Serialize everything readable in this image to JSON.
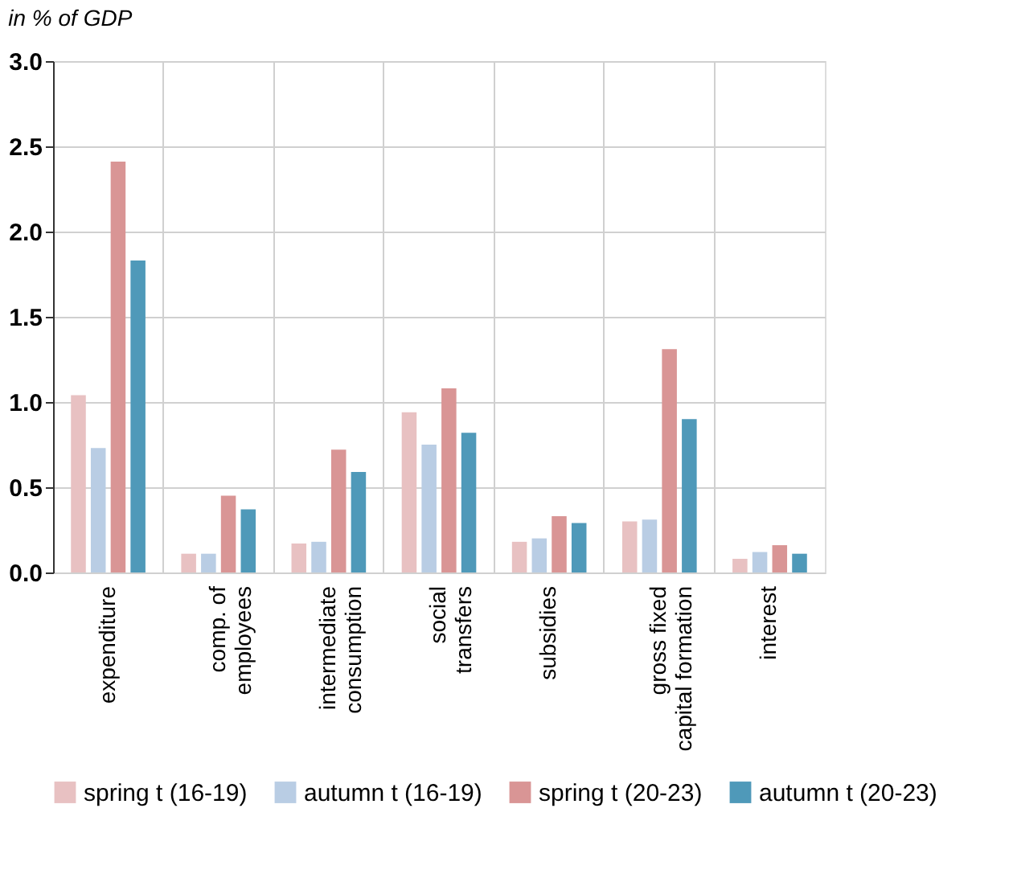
{
  "chart_data": {
    "type": "bar",
    "title": "in % of GDP",
    "categories": [
      "expenditure",
      "comp. of\nemployees",
      "intermediate\nconsumption",
      "social\ntransfers",
      "subsidies",
      "gross fixed\ncapital formation",
      "interest"
    ],
    "series": [
      {
        "name": "spring t (16-19)",
        "color": "#e8c1c2",
        "values": [
          1.04,
          0.11,
          0.17,
          0.94,
          0.18,
          0.3,
          0.08
        ]
      },
      {
        "name": "autumn t (16-19)",
        "color": "#b9cde4",
        "values": [
          0.73,
          0.11,
          0.18,
          0.75,
          0.2,
          0.31,
          0.12
        ]
      },
      {
        "name": "spring t (20-23)",
        "color": "#d99595",
        "values": [
          2.41,
          0.45,
          0.72,
          1.08,
          0.33,
          1.31,
          0.16
        ]
      },
      {
        "name": "autumn t (20-23)",
        "color": "#4f99b9",
        "values": [
          1.83,
          0.37,
          0.59,
          0.82,
          0.29,
          0.9,
          0.11
        ]
      }
    ],
    "ylim": [
      0,
      3
    ],
    "yticks": [
      {
        "value": 0,
        "label": "0.0"
      },
      0.5,
      {
        "value": 1,
        "label": "1.0"
      },
      1.5,
      {
        "value": 2,
        "label": "2.0"
      },
      2.5,
      {
        "value": 3,
        "label": "3.0"
      }
    ],
    "grid": true,
    "legend": "bottom"
  }
}
